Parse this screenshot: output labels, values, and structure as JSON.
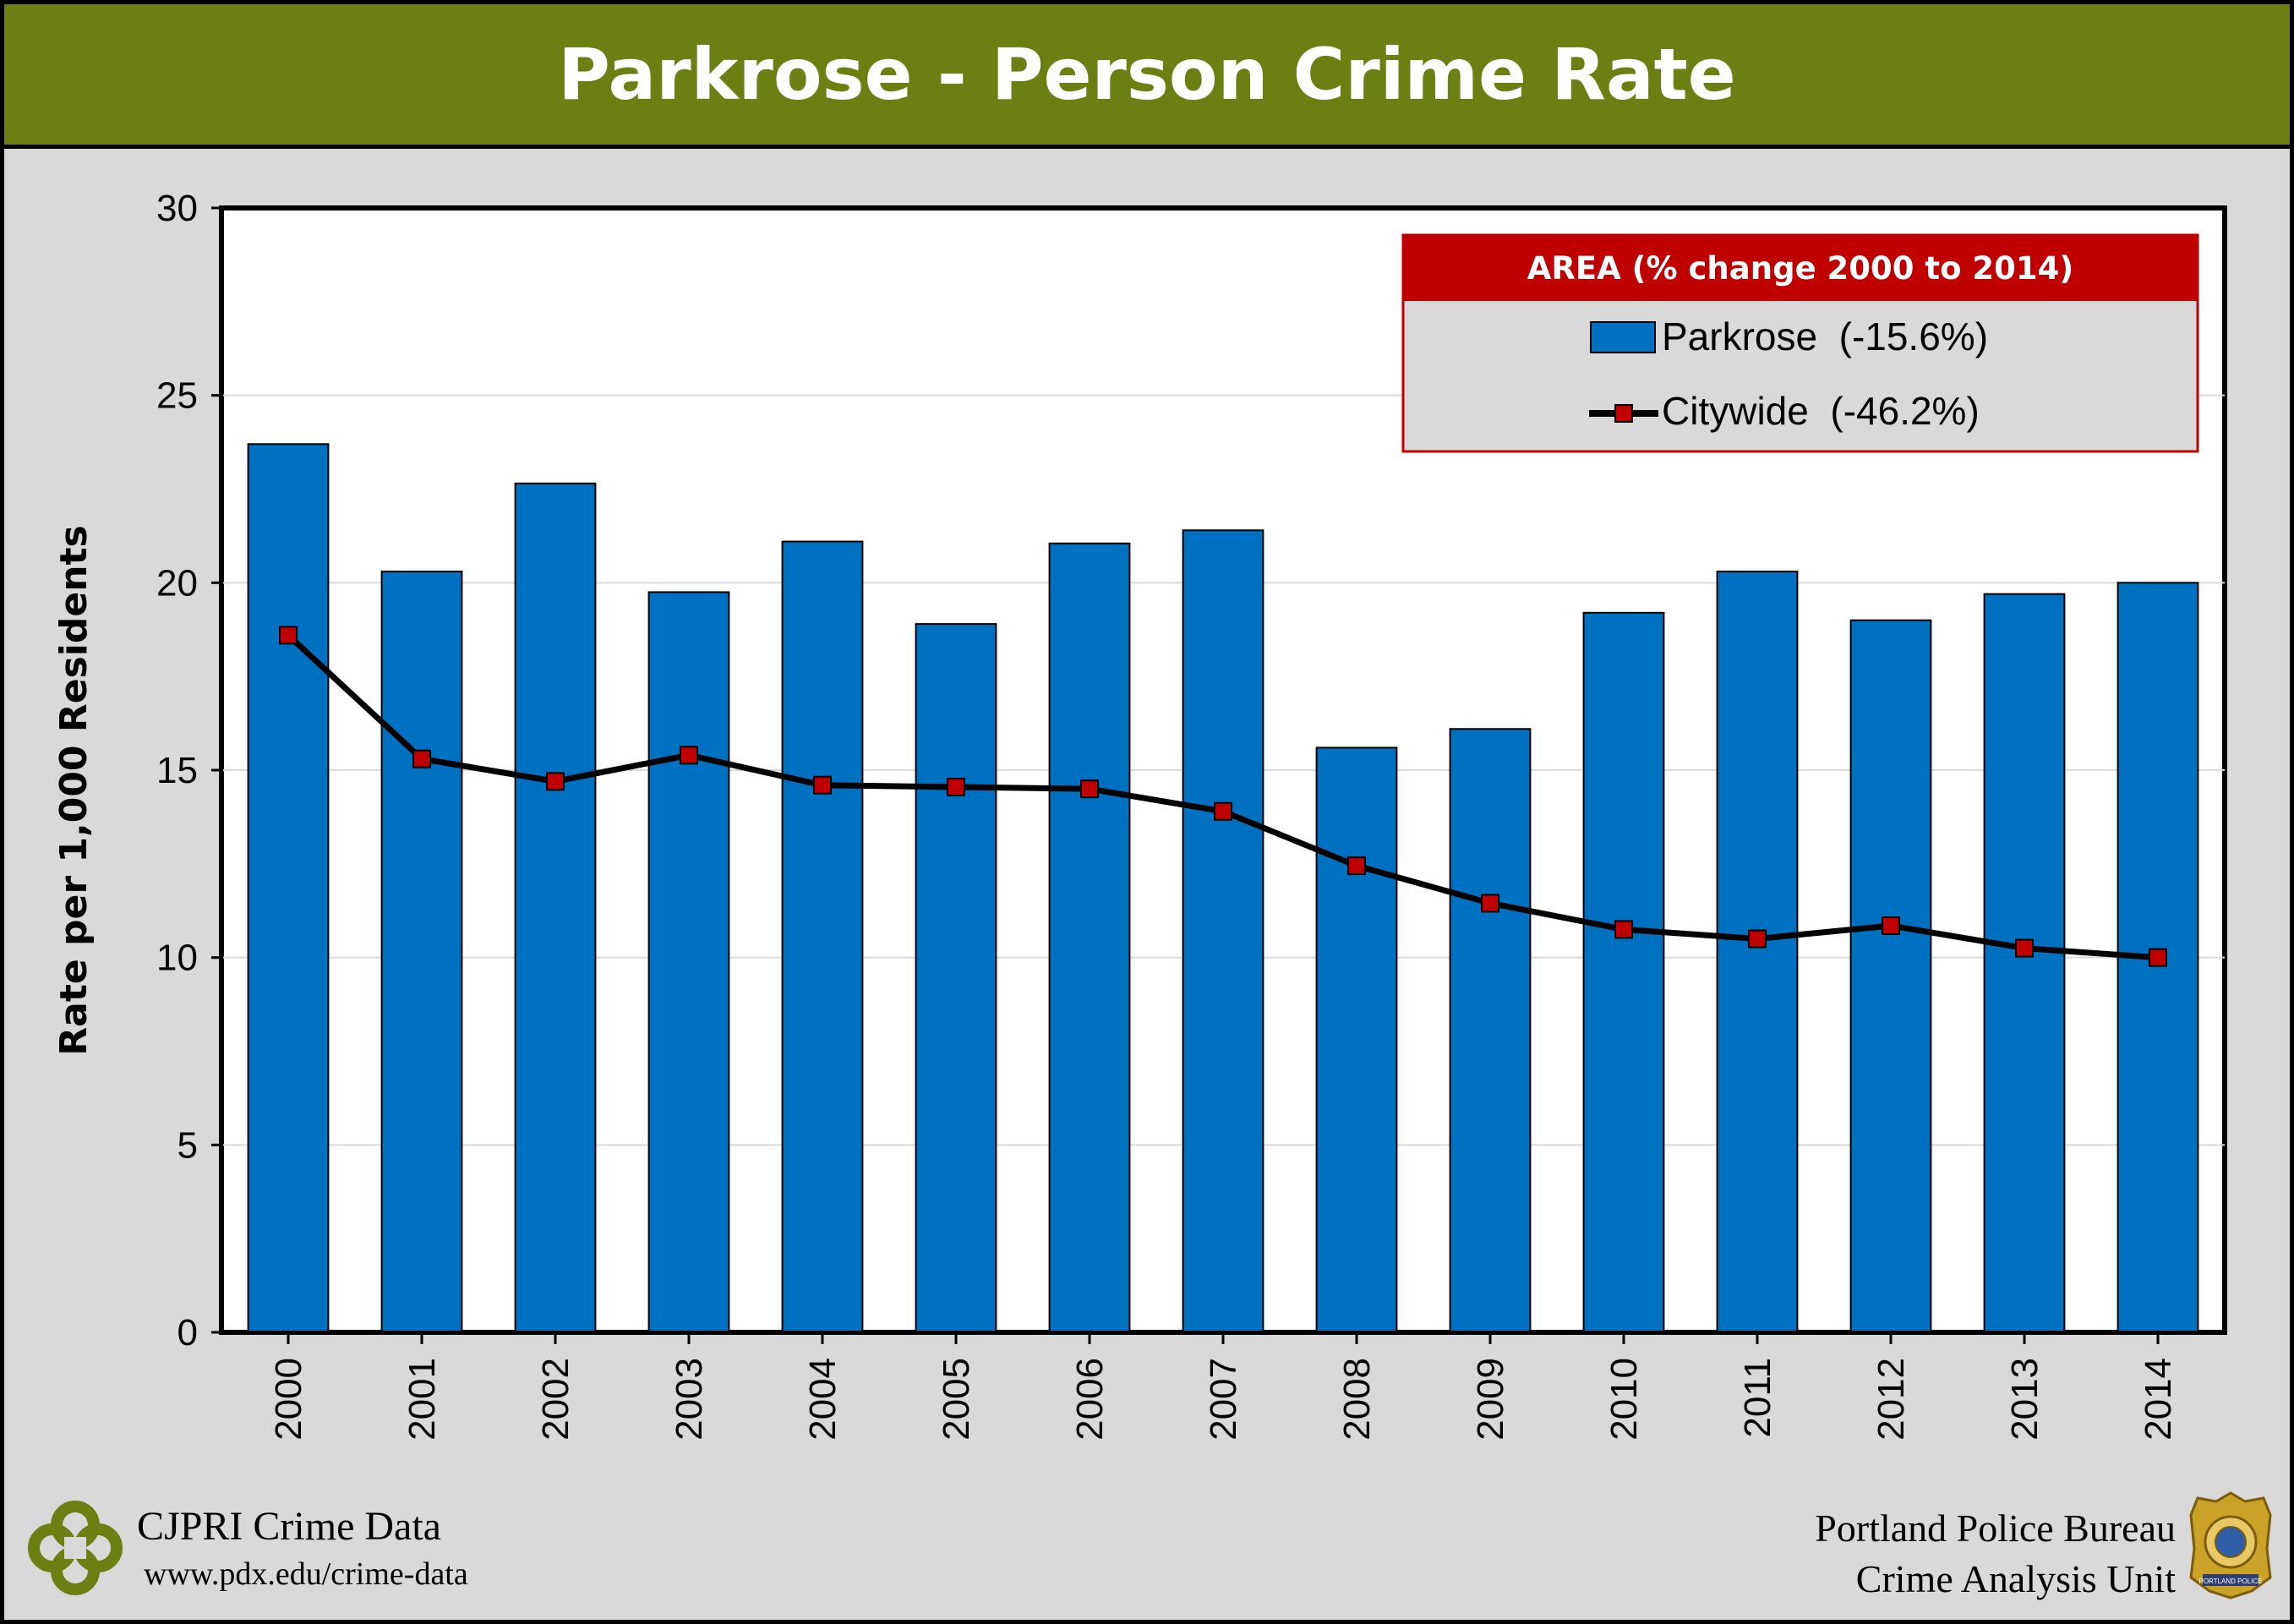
{
  "title": "Parkrose - Person Crime Rate",
  "chart_data": {
    "type": "bar",
    "title": "Parkrose - Person Crime Rate",
    "xlabel": "",
    "ylabel": "Rate per 1,000 Residents",
    "ylim": [
      0,
      30
    ],
    "yticks": [
      0,
      5,
      10,
      15,
      20,
      25,
      30
    ],
    "grid": true,
    "categories": [
      "2000",
      "2001",
      "2002",
      "2003",
      "2004",
      "2005",
      "2006",
      "2007",
      "2008",
      "2009",
      "2010",
      "2011",
      "2012",
      "2013",
      "2014"
    ],
    "series": [
      {
        "name": "Parkrose  (-15.6%)",
        "type": "bar",
        "color": "#0070c0",
        "values": [
          23.7,
          20.3,
          22.65,
          19.75,
          21.1,
          18.9,
          21.05,
          21.4,
          15.6,
          16.1,
          19.2,
          20.3,
          19.0,
          19.7,
          20.0
        ]
      },
      {
        "name": "Citywide  (-46.2%)",
        "type": "line",
        "color": "#000000",
        "marker_color": "#c00000",
        "values": [
          18.6,
          15.3,
          14.7,
          15.4,
          14.6,
          14.55,
          14.5,
          13.9,
          12.45,
          11.45,
          10.75,
          10.5,
          10.85,
          10.25,
          10.0
        ]
      }
    ],
    "legend": {
      "placement": "top-right",
      "header": "AREA  (% change 2000 to 2014)",
      "header_color": "#c00000"
    }
  },
  "footer": {
    "left_title": "CJPRI Crime Data",
    "left_url": "www.pdx.edu/crime-data",
    "right_line1": "Portland Police Bureau",
    "right_line2": "Crime Analysis Unit",
    "right_logo_text": "PORTLAND POLICE"
  },
  "colors": {
    "title_bar": "#6b7f13",
    "background": "#d9d9d9",
    "bar": "#0070c0",
    "marker": "#c00000",
    "legend_header": "#c00000"
  }
}
